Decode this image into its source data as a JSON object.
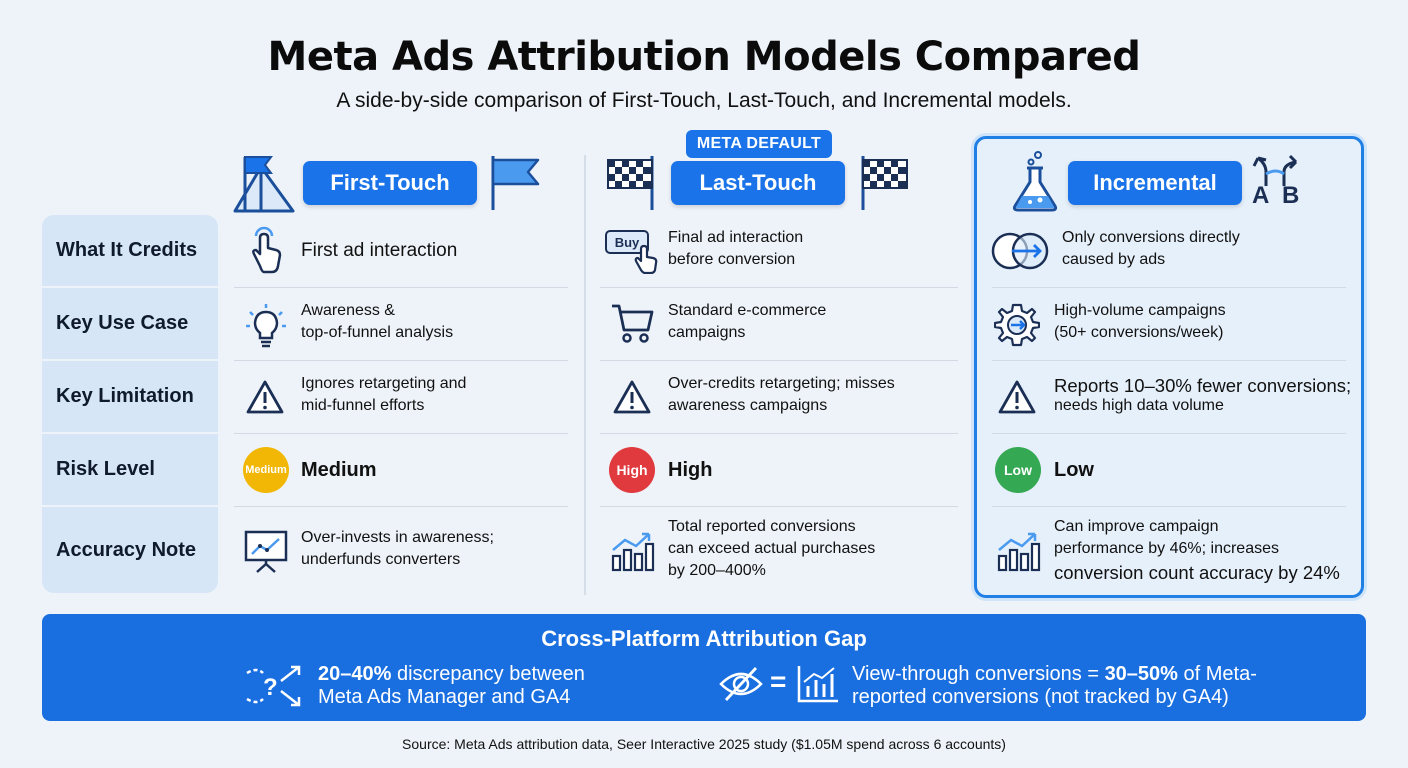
{
  "header": {
    "title": "Meta Ads Attribution Models Compared",
    "subtitle": "A side-by-side comparison of First-Touch, Last-Touch, and Incremental models."
  },
  "row_labels": [
    "What It Credits",
    "Key Use Case",
    "Key Limitation",
    "Risk Level",
    "Accuracy Note"
  ],
  "columns": {
    "first_touch": {
      "name": "First-Touch",
      "credits_line1": "First ad interaction",
      "use_line1": "Awareness &",
      "use_line2": "top-of-funnel analysis",
      "limit_line1": "Ignores retargeting and",
      "limit_line2": "mid-funnel efforts",
      "risk_badge": "Medium",
      "risk_label": "Medium",
      "note_line1": "Over-invests in awareness;",
      "note_line2": "underfunds converters"
    },
    "last_touch": {
      "name": "Last-Touch",
      "badge": "META DEFAULT",
      "credits_icon_text": "Buy",
      "credits_line1": "Final ad interaction",
      "credits_line2": "before conversion",
      "use_line1": "Standard e-commerce",
      "use_line2": "campaigns",
      "limit_line1": "Over-credits retargeting; misses",
      "limit_line2": "awareness campaigns",
      "risk_badge": "High",
      "risk_label": "High",
      "note_line1": "Total reported conversions",
      "note_line2": "can exceed actual purchases",
      "note_line3": "by 200–400%"
    },
    "incremental": {
      "name": "Incremental",
      "ab_a": "A",
      "ab_b": "B",
      "credits_line1": "Only conversions directly",
      "credits_line2": "caused by ads",
      "use_line1": "High-volume campaigns",
      "use_line2": "(50+ conversions/week)",
      "limit_line1": "Reports 10–30% fewer conversions;",
      "limit_line2": "needs high data volume",
      "risk_badge": "Low",
      "risk_label": "Low",
      "note_line1": "Can improve campaign",
      "note_line2": "performance by 46%; increases",
      "note_line3": "conversion count accuracy by 24%"
    }
  },
  "risk_colors": {
    "medium": "#f2b705",
    "high": "#e0393e",
    "low": "#35a853"
  },
  "banner": {
    "title": "Cross-Platform Attribution Gap",
    "left_bold": "20–40%",
    "left_rest": " discrepancy between",
    "left_line2": "Meta Ads Manager and GA4",
    "equals": "=",
    "right_pre": "View-through conversions = ",
    "right_bold": "30–50%",
    "right_post": " of Meta-",
    "right_line2": "reported conversions (not tracked by GA4)"
  },
  "source": "Source: Meta Ads attribution data, Seer Interactive 2025 study ($1.05M spend across 6 accounts)",
  "accent_color": "#1a73e8"
}
